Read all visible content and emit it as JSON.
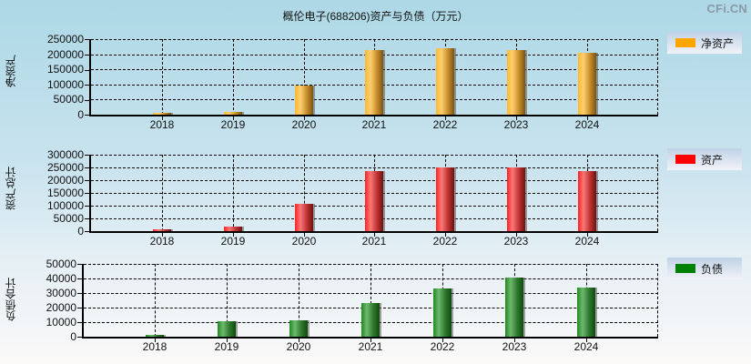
{
  "title": "概伦电子(688206)资产与负债（万元）",
  "watermark": "CFi.CN",
  "colors": {
    "net_assets": "#ffa500",
    "total_assets": "#ff0000",
    "total_liabilities": "#008000"
  },
  "chart_data": [
    {
      "type": "bar",
      "title": "概伦电子(688206)资产与负债（万元）",
      "ylabel": "净资产",
      "xlabel": "",
      "legend": "净资产",
      "legend_position": "right-top",
      "grid": true,
      "categories": [
        "2018",
        "2019",
        "2020",
        "2021",
        "2022",
        "2023",
        "2024"
      ],
      "values": [
        2000,
        8000,
        96000,
        214000,
        220000,
        214000,
        205000
      ],
      "ylim": [
        0,
        250000
      ],
      "yticks": [
        "250000",
        "200000",
        "150000",
        "100000",
        "50000",
        "0"
      ]
    },
    {
      "type": "bar",
      "ylabel": "资产总计",
      "xlabel": "",
      "legend": "资产",
      "legend_position": "right-top",
      "grid": true,
      "categories": [
        "2018",
        "2019",
        "2020",
        "2021",
        "2022",
        "2023",
        "2024"
      ],
      "values": [
        3000,
        19000,
        107000,
        236000,
        250000,
        250000,
        236000
      ],
      "ylim": [
        0,
        300000
      ],
      "yticks": [
        "300000",
        "250000",
        "200000",
        "150000",
        "100000",
        "50000",
        "0"
      ]
    },
    {
      "type": "bar",
      "ylabel": "负债合计",
      "xlabel": "",
      "legend": "负债",
      "legend_position": "right-top",
      "grid": true,
      "categories": [
        "2018",
        "2019",
        "2020",
        "2021",
        "2022",
        "2023",
        "2024"
      ],
      "values": [
        1000,
        10800,
        11200,
        23000,
        33000,
        40700,
        33800
      ],
      "ylim": [
        0,
        50000
      ],
      "yticks": [
        "50000",
        "40000",
        "30000",
        "20000",
        "10000",
        "0"
      ]
    }
  ]
}
